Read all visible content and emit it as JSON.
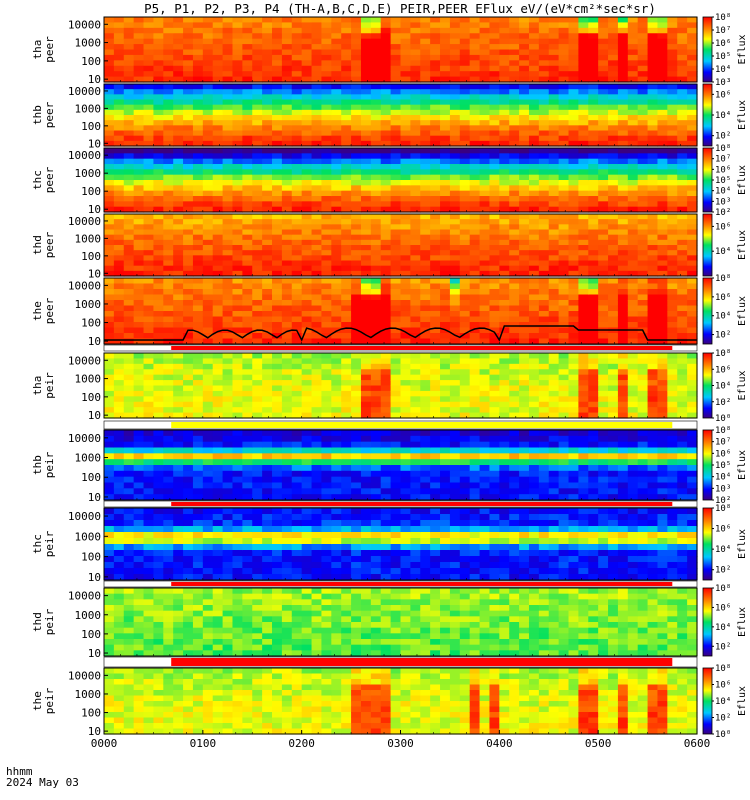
{
  "title": "P5, P1, P2, P3, P4 (TH-A,B,C,D,E) PEIR,PEER EFlux eV/(eV*cm²*sec*sr)",
  "colorbar_label": "Eflux",
  "time_axis": {
    "label": "hhmm",
    "date": "2024 May 03",
    "ticks": [
      "0000",
      "0100",
      "0200",
      "0300",
      "0400",
      "0500",
      "0600"
    ]
  },
  "colors": {
    "spectrogram_hot": "#e83010",
    "spectrogram_warm": "#f5a800",
    "spectrogram_cool": "#2040e0",
    "quality_bar_red": "#ff0000",
    "quality_bar_yellow": "#ffff00",
    "trace": "#000000"
  },
  "chart_data": {
    "type": "heatmap",
    "x_range_hours": [
      0,
      6
    ],
    "y_scale": "log",
    "panels": [
      {
        "id": "tha_peer",
        "ylabel_top": "tha",
        "ylabel_bottom": "peer",
        "yticks": [
          "10000",
          "1000",
          "100",
          "10"
        ],
        "colorbar_ticks": [
          "10⁸",
          "10⁷",
          "10⁶",
          "10⁵",
          "10⁴",
          "10³"
        ],
        "colorbar_range_exp": [
          3,
          8
        ]
      },
      {
        "id": "thb_peer",
        "ylabel_top": "thb",
        "ylabel_bottom": "peer",
        "yticks": [
          "10000",
          "1000",
          "100",
          "10"
        ],
        "colorbar_ticks": [
          "10⁶",
          "10⁴",
          "10²"
        ],
        "colorbar_range_exp": [
          1,
          7
        ]
      },
      {
        "id": "thc_peer",
        "ylabel_top": "thc",
        "ylabel_bottom": "peer",
        "yticks": [
          "10000",
          "1000",
          "100",
          "10"
        ],
        "colorbar_ticks": [
          "10⁸",
          "10⁷",
          "10⁶",
          "10⁵",
          "10⁴",
          "10³",
          "10²"
        ],
        "colorbar_range_exp": [
          2,
          8
        ]
      },
      {
        "id": "thd_peer",
        "ylabel_top": "thd",
        "ylabel_bottom": "peer",
        "yticks": [
          "10000",
          "1000",
          "100",
          "10"
        ],
        "colorbar_ticks": [
          "10⁶",
          "10⁴"
        ],
        "colorbar_range_exp": [
          2,
          7
        ]
      },
      {
        "id": "the_peer",
        "ylabel_top": "the",
        "ylabel_bottom": "peer",
        "yticks": [
          "10000",
          "1000",
          "100",
          "10"
        ],
        "colorbar_ticks": [
          "10⁸",
          "10⁶",
          "10⁴",
          "10²"
        ],
        "colorbar_range_exp": [
          1,
          8
        ]
      },
      {
        "id": "tha_peir",
        "ylabel_top": "tha",
        "ylabel_bottom": "peir",
        "yticks": [
          "10000",
          "1000",
          "100",
          "10"
        ],
        "colorbar_ticks": [
          "10⁸",
          "10⁶",
          "10⁴",
          "10²",
          "10⁰"
        ],
        "colorbar_range_exp": [
          0,
          8
        ]
      },
      {
        "id": "thb_peir",
        "ylabel_top": "thb",
        "ylabel_bottom": "peir",
        "yticks": [
          "10000",
          "1000",
          "100",
          "10"
        ],
        "colorbar_ticks": [
          "10⁸",
          "10⁷",
          "10⁶",
          "10⁵",
          "10⁴",
          "10³",
          "10²"
        ],
        "colorbar_range_exp": [
          2,
          8
        ]
      },
      {
        "id": "thc_peir",
        "ylabel_top": "thc",
        "ylabel_bottom": "peir",
        "yticks": [
          "10000",
          "1000",
          "100",
          "10"
        ],
        "colorbar_ticks": [
          "10⁸",
          "10⁶",
          "10⁴",
          "10²"
        ],
        "colorbar_range_exp": [
          1,
          8
        ]
      },
      {
        "id": "thd_peir",
        "ylabel_top": "thd",
        "ylabel_bottom": "peir",
        "yticks": [
          "10000",
          "1000",
          "100",
          "10"
        ],
        "colorbar_ticks": [
          "10⁸",
          "10⁶",
          "10⁴",
          "10²"
        ],
        "colorbar_range_exp": [
          1,
          8
        ]
      },
      {
        "id": "the_peir",
        "ylabel_top": "the",
        "ylabel_bottom": "peir",
        "yticks": [
          "10000",
          "1000",
          "100",
          "10"
        ],
        "colorbar_ticks": [
          "10⁸",
          "10⁶",
          "10⁴",
          "10²",
          "10⁰"
        ],
        "colorbar_range_exp": [
          0,
          8
        ]
      }
    ]
  }
}
